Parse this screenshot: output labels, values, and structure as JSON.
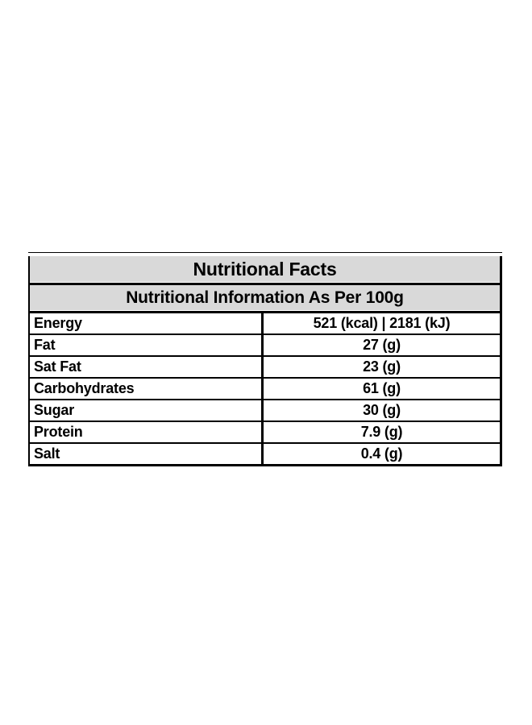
{
  "page": {
    "background": "#ffffff"
  },
  "table": {
    "title": "Nutritional Facts",
    "subtitle": "Nutritional Information As Per 100g",
    "rows": [
      {
        "label": "Energy",
        "value": "521 (kcal) | 2181 (kJ)"
      },
      {
        "label": "Fat",
        "value": "27 (g)"
      },
      {
        "label": "Sat Fat",
        "value": "23 (g)"
      },
      {
        "label": "Carbohydrates",
        "value": "61 (g)"
      },
      {
        "label": "Sugar",
        "value": "30 (g)"
      },
      {
        "label": "Protein",
        "value": "7.9 (g)"
      },
      {
        "label": "Salt",
        "value": "0.4 (g)"
      }
    ],
    "colors": {
      "header_bg": "#d9d9d9",
      "border": "#000000",
      "text": "#000000",
      "row_bg": "#ffffff"
    }
  }
}
